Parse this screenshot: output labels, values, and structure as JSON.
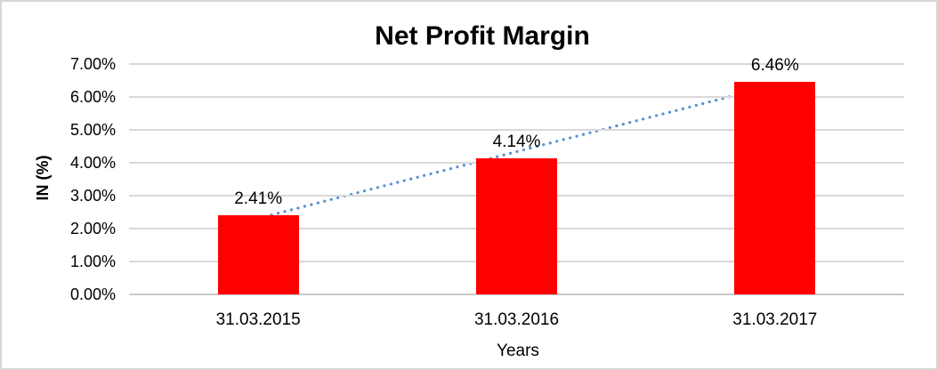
{
  "chart_data": {
    "type": "bar",
    "title": "Net Profit Margin",
    "xlabel": "Years",
    "ylabel": "IN (%)",
    "categories": [
      "31.03.2015",
      "31.03.2016",
      "31.03.2017"
    ],
    "values": [
      2.41,
      4.14,
      6.46
    ],
    "data_labels": [
      "2.41%",
      "4.14%",
      "6.46%"
    ],
    "ylim": [
      0,
      7
    ],
    "ytick_step": 1,
    "ytick_labels": [
      "0.00%",
      "1.00%",
      "2.00%",
      "3.00%",
      "4.00%",
      "5.00%",
      "6.00%",
      "7.00%"
    ],
    "grid": true,
    "legend": "none",
    "bar_color": "#ff0000",
    "trendline": {
      "type": "linear",
      "style": "dotted",
      "color": "#5590d5"
    },
    "gridline_color": "#d9d9d9",
    "text_color": "#000000"
  }
}
